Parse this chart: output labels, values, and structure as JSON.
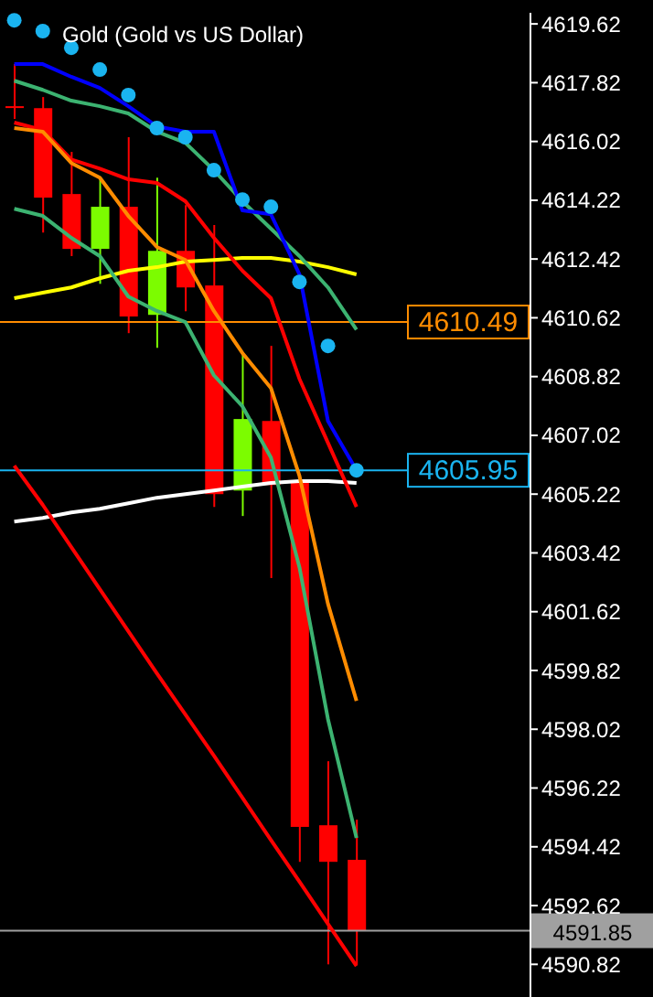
{
  "chart_data": {
    "type": "candlestick",
    "title": "Gold (Gold vs US Dollar)",
    "categories": [
      null,
      null,
      null,
      null,
      null,
      null,
      null,
      null,
      null,
      null,
      null,
      null,
      null
    ],
    "ohlc": [
      [
        4617.1,
        4618.39,
        4616.71,
        4617.07
      ],
      [
        4617.04,
        4617.38,
        4613.23,
        4614.3
      ],
      [
        4614.41,
        4615.7,
        4612.51,
        4612.73
      ],
      [
        4612.73,
        4614.91,
        4611.66,
        4614.02
      ],
      [
        4614.02,
        4616.15,
        4610.15,
        4610.66
      ],
      [
        4610.71,
        4614.91,
        4609.7,
        4612.67
      ],
      [
        4612.67,
        4614.07,
        4610.82,
        4611.55
      ],
      [
        4611.61,
        4613.46,
        4604.83,
        4605.22
      ],
      [
        4605.33,
        4609.54,
        4604.55,
        4607.52
      ],
      [
        4607.46,
        4609.76,
        4602.65,
        4605.5
      ],
      [
        4605.61,
        4605.61,
        4593.96,
        4595.03
      ],
      [
        4595.08,
        4597.04,
        4590.82,
        4593.96
      ],
      [
        4594.02,
        4595.25,
        4590.82,
        4591.85
      ]
    ],
    "colors": [
      "#ff0000",
      "#ff0000",
      "#ff0000",
      "#7cfc00",
      "#ff0000",
      "#7cfc00",
      "#ff0000",
      "#ff0000",
      "#7cfc00",
      "#ff0000",
      "#ff0000",
      "#ff0000",
      "#ff0000"
    ],
    "series": [
      {
        "type": "line",
        "color": "#ffffff",
        "values": [
          4604.38,
          4604.49,
          4604.66,
          4604.77,
          4604.94,
          4605.11,
          4605.22,
          4605.33,
          4605.45,
          4605.56,
          4605.62,
          4605.62,
          4605.56
        ]
      },
      {
        "type": "line",
        "color": "#ffff00",
        "values": [
          4611.22,
          4611.39,
          4611.55,
          4611.83,
          4612.06,
          4612.17,
          4612.34,
          4612.39,
          4612.45,
          4612.45,
          4612.34,
          4612.17,
          4611.95
        ]
      },
      {
        "type": "line",
        "color": "#ff0000",
        "values": [
          4606.09,
          4604.89,
          4603.6,
          4602.31,
          4601.02,
          4599.73,
          4598.47,
          4597.21,
          4595.92,
          4594.63,
          4593.35,
          4592.06,
          4590.77
        ]
      },
      {
        "type": "line",
        "color": "#3cb371",
        "values": [
          4617.88,
          4617.6,
          4617.27,
          4617.1,
          4616.88,
          4616.32,
          4615.98,
          4615.14,
          4614.19,
          4613.35,
          4612.51,
          4611.55,
          4610.26
        ]
      },
      {
        "type": "line",
        "color": "#3cb371",
        "values": [
          4613.96,
          4613.74,
          4613.07,
          4612.51,
          4611.27,
          4610.83,
          4610.49,
          4608.86,
          4607.91,
          4606.34,
          4602.98,
          4598.33,
          4594.69
        ]
      },
      {
        "type": "line",
        "color": "#0000ff",
        "values": [
          4618.39,
          4618.39,
          4618.0,
          4617.66,
          4617.1,
          4616.48,
          4616.32,
          4616.32,
          4613.91,
          4613.79,
          4611.95,
          4607.46,
          4605.95
        ]
      },
      {
        "type": "line",
        "color": "#ff0000",
        "values": [
          4616.6,
          4616.37,
          4615.47,
          4615.19,
          4614.86,
          4614.75,
          4614.19,
          4613.07,
          4612.06,
          4611.22,
          4608.75,
          4606.79,
          4604.83
        ]
      },
      {
        "type": "line",
        "color": "#ff8c00",
        "values": [
          4616.43,
          4616.32,
          4615.36,
          4614.91,
          4613.74,
          4612.79,
          4612.39,
          4610.83,
          4609.54,
          4608.47,
          4605.78,
          4601.86,
          4598.89
        ]
      },
      {
        "type": "scatter",
        "color": "#1ab4f0",
        "marker": "circle",
        "values": [
          4619.73,
          4619.4,
          4618.89,
          4618.22,
          4617.44,
          4616.43,
          4616.15,
          4615.14,
          4614.24,
          4614.02,
          4611.72,
          4609.76,
          4605.95
        ]
      }
    ],
    "ylim": [
      4589.82,
      4619.96
    ],
    "yticks": [
      4619.62,
      4617.82,
      4616.02,
      4614.22,
      4612.42,
      4610.62,
      4608.82,
      4607.02,
      4605.22,
      4603.42,
      4601.62,
      4599.82,
      4598.02,
      4596.22,
      4594.42,
      4592.62,
      4590.82
    ],
    "ref_lines": [
      {
        "axis": "y",
        "value": 4610.49,
        "label": "4610.49",
        "color": "#ff8c00"
      },
      {
        "axis": "y",
        "value": 4605.95,
        "label": "4605.95",
        "color": "#1ab4f0"
      },
      {
        "axis": "y",
        "value": 4591.85,
        "label": "4591.85",
        "color": "#a0a0a0"
      }
    ],
    "grid": false,
    "legend": false
  }
}
